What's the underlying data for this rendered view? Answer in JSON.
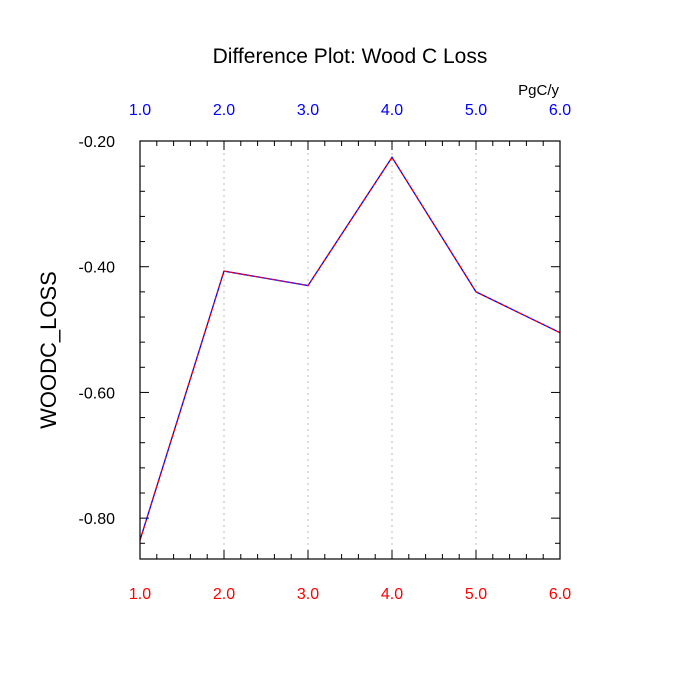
{
  "chart_data": {
    "type": "line",
    "title": "Difference Plot: Wood C Loss",
    "units": "PgC/y",
    "ylabel": "WOODC_LOSS",
    "xlim": [
      1.0,
      6.0
    ],
    "ylim": [
      -0.865,
      -0.2
    ],
    "x_ticks": [
      "1.0",
      "2.0",
      "3.0",
      "4.0",
      "5.0",
      "6.0"
    ],
    "y_ticks": [
      {
        "value": -0.2,
        "label": "-0.20"
      },
      {
        "value": -0.4,
        "label": "-0.40"
      },
      {
        "value": -0.6,
        "label": "-0.60"
      },
      {
        "value": -0.8,
        "label": "-0.80"
      }
    ],
    "grid": "vertical dotted",
    "series": [
      {
        "x": [
          1.0,
          2.0,
          3.0,
          4.0,
          5.0,
          6.0
        ],
        "y": [
          -0.835,
          -0.407,
          -0.43,
          -0.226,
          -0.44,
          -0.505
        ],
        "color": "#0000ff",
        "dash_color": "#ff0000"
      }
    ],
    "colors": {
      "top_ticks": "#0000ff",
      "bottom_ticks": "#ff0000",
      "axis": "#000000",
      "grid": "#bbbbbb"
    }
  }
}
